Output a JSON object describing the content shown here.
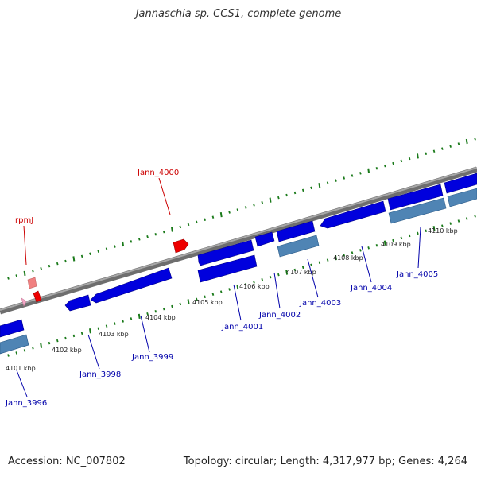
{
  "title": "Jannaschia sp. CCS1, complete genome",
  "accession": "Accession: NC_007802",
  "topology": "Topology: circular; Length: 4,317,977 bp; Genes: 4,264",
  "colors": {
    "forward_gene": "#0000dd",
    "reverse_gene": "#0000dd",
    "pseudo_gene": "#4f84b4",
    "rna_gene": "#ee0000",
    "rna_small": "#f4a8b8",
    "backbone": "#808080",
    "tick": "#1a7a1a",
    "label_blue": "#0000aa",
    "label_red": "#cc0000"
  },
  "scale_labels": [
    "4101 kbp",
    "4102 kbp",
    "4103 kbp",
    "4104 kbp",
    "4105 kbp",
    "4106 kbp",
    "4107 kbp",
    "4108 kbp",
    "4109 kbp",
    "4110 kbp"
  ],
  "gene_labels": [
    {
      "name": "Jann_3996",
      "color": "label_blue"
    },
    {
      "name": "Jann_3998",
      "color": "label_blue"
    },
    {
      "name": "Jann_3999",
      "color": "label_blue"
    },
    {
      "name": "Jann_4001",
      "color": "label_blue"
    },
    {
      "name": "Jann_4002",
      "color": "label_blue"
    },
    {
      "name": "Jann_4003",
      "color": "label_blue"
    },
    {
      "name": "Jann_4004",
      "color": "label_blue"
    },
    {
      "name": "Jann_4005",
      "color": "label_blue"
    },
    {
      "name": "Jann_4000",
      "color": "label_red"
    },
    {
      "name": "rpmJ",
      "color": "label_red"
    }
  ]
}
